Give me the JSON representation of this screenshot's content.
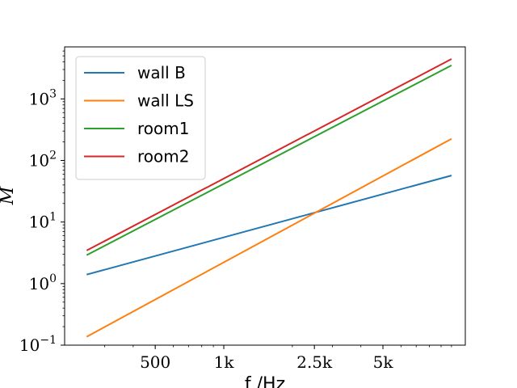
{
  "chart_data": {
    "type": "line",
    "xscale": "log",
    "yscale": "log",
    "xlim": [
      200,
      11500
    ],
    "ylim": [
      0.1,
      7000
    ],
    "xlabel": "f /Hz",
    "ylabel": "M",
    "xticks": [
      {
        "value": 500,
        "label": "500"
      },
      {
        "value": 1000,
        "label": "1k"
      },
      {
        "value": 2500,
        "label": "2.5k"
      },
      {
        "value": 5000,
        "label": "5k"
      }
    ],
    "yticks": [
      {
        "value": 0.1,
        "base": "10",
        "exp": "−1"
      },
      {
        "value": 1,
        "base": "10",
        "exp": "0"
      },
      {
        "value": 10,
        "base": "10",
        "exp": "1"
      },
      {
        "value": 100,
        "base": "10",
        "exp": "2"
      },
      {
        "value": 1000,
        "base": "10",
        "exp": "3"
      }
    ],
    "grid": false,
    "legend_position": "top-left",
    "series": [
      {
        "name": "wall B",
        "color": "#1f77b4",
        "x": [
          250,
          10000
        ],
        "y": [
          1.4,
          57
        ]
      },
      {
        "name": "wall LS",
        "color": "#ff7f0e",
        "x": [
          250,
          10000
        ],
        "y": [
          0.137,
          225
        ]
      },
      {
        "name": "room1",
        "color": "#2ca02c",
        "x": [
          250,
          10000
        ],
        "y": [
          2.9,
          3500
        ]
      },
      {
        "name": "room2",
        "color": "#d62728",
        "x": [
          250,
          10000
        ],
        "y": [
          3.45,
          4450
        ]
      }
    ]
  }
}
